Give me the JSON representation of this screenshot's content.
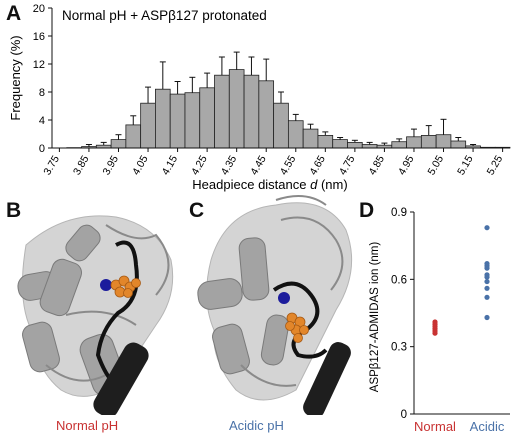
{
  "panels": {
    "a": "A",
    "b": "B",
    "c": "C",
    "d": "D"
  },
  "chart_data": [
    {
      "type": "bar",
      "title": "Normal pH + ASPβ127 protonated",
      "xlabel_prefix": "Headpiece distance ",
      "xlabel_var": "d",
      "xlabel_suffix": " (nm)",
      "ylabel": "Frequency (%)",
      "ylim": [
        0,
        20
      ],
      "yticks": [
        "0",
        "4",
        "8",
        "12",
        "16",
        "20"
      ],
      "xtick_labels": [
        "3.75",
        "3.85",
        "3.95",
        "4.05",
        "4.15",
        "4.25",
        "4.35",
        "4.45",
        "4.55",
        "4.65",
        "4.75",
        "4.85",
        "4.95",
        "5.05",
        "5.15",
        "5.25"
      ],
      "x": [
        3.75,
        3.8,
        3.85,
        3.9,
        3.95,
        4.0,
        4.05,
        4.1,
        4.15,
        4.2,
        4.25,
        4.3,
        4.35,
        4.4,
        4.45,
        4.5,
        4.55,
        4.6,
        4.65,
        4.7,
        4.75,
        4.8,
        4.85,
        4.9,
        4.95,
        5.0,
        5.05,
        5.1,
        5.15,
        5.2,
        5.25
      ],
      "values": [
        0.0,
        0.05,
        0.2,
        0.4,
        1.2,
        3.3,
        6.4,
        8.4,
        7.7,
        7.9,
        8.6,
        10.4,
        11.2,
        10.4,
        9.6,
        6.4,
        3.9,
        2.7,
        1.8,
        1.2,
        0.8,
        0.5,
        0.4,
        0.9,
        1.6,
        1.8,
        1.9,
        1.0,
        0.3,
        0.1,
        0.1
      ],
      "errors": [
        0.0,
        0.1,
        0.3,
        0.4,
        0.7,
        1.3,
        2.3,
        3.9,
        1.8,
        2.2,
        2.1,
        2.6,
        2.5,
        2.6,
        3.1,
        1.6,
        0.9,
        0.7,
        0.5,
        0.3,
        0.3,
        0.3,
        0.3,
        0.4,
        1.1,
        1.4,
        2.2,
        0.5,
        0.2,
        0.1,
        0.1
      ],
      "bar_color": "#a8a8a8",
      "grid": false
    },
    {
      "type": "scatter",
      "ylabel": "ASPβ127-ADMIDAS ion (nm)",
      "categories": [
        "Normal",
        "Acidic"
      ],
      "category_colors": [
        "#c83232",
        "#4a72a8"
      ],
      "ylim": [
        0,
        0.9
      ],
      "yticks": [
        "0",
        "0.3",
        "0.6",
        "0.9"
      ],
      "series": [
        {
          "values": [
            0.36,
            0.37,
            0.38,
            0.39,
            0.4,
            0.41
          ]
        },
        {
          "values": [
            0.43,
            0.52,
            0.56,
            0.59,
            0.61,
            0.62,
            0.65,
            0.66,
            0.67,
            0.83
          ]
        }
      ],
      "grid": false
    }
  ],
  "images": {
    "b_caption": "Normal pH",
    "b_caption_color": "#c83232",
    "c_caption": "Acidic pH",
    "c_caption_color": "#4a72a8"
  }
}
